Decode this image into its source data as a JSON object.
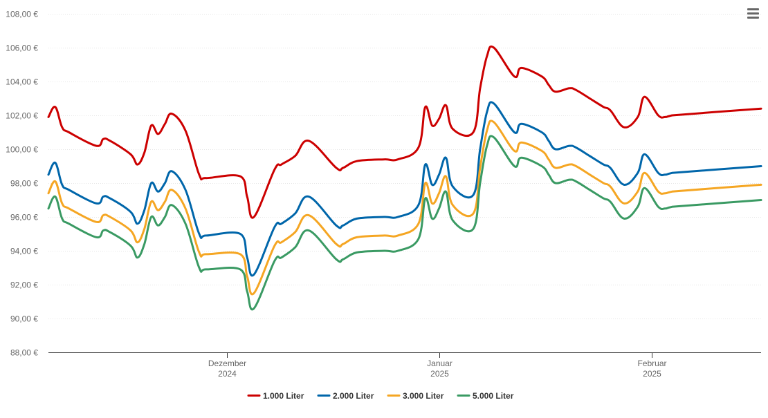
{
  "menu": {
    "icon": "hamburger-menu-icon"
  },
  "chart_data": {
    "type": "line",
    "title": "",
    "xlabel": "",
    "ylabel": "",
    "ylim": [
      88,
      108
    ],
    "yticks": [
      "88,00 €",
      "90,00 €",
      "92,00 €",
      "94,00 €",
      "96,00 €",
      "98,00 €",
      "100,00 €",
      "102,00 €",
      "104,00 €",
      "106,00 €",
      "108,00 €"
    ],
    "ytick_values": [
      88,
      90,
      92,
      94,
      96,
      98,
      100,
      102,
      104,
      106,
      108
    ],
    "xlim": [
      "2024-11-05",
      "2025-02-17"
    ],
    "xticks": [
      {
        "date": "2024-12-01",
        "line1": "Dezember",
        "line2": "2024"
      },
      {
        "date": "2025-01-01",
        "line1": "Januar",
        "line2": "2025"
      },
      {
        "date": "2025-02-01",
        "line1": "Februar",
        "line2": "2025"
      }
    ],
    "grid": true,
    "legend_position": "bottom-center",
    "x": [
      "2024-11-05",
      "2024-11-06",
      "2024-11-07",
      "2024-11-08",
      "2024-11-12",
      "2024-11-13",
      "2024-11-14",
      "2024-11-17",
      "2024-11-18",
      "2024-11-19",
      "2024-11-20",
      "2024-11-21",
      "2024-11-22",
      "2024-11-23",
      "2024-11-25",
      "2024-11-27",
      "2024-11-28",
      "2024-12-03",
      "2024-12-04",
      "2024-12-05",
      "2024-12-08",
      "2024-12-09",
      "2024-12-11",
      "2024-12-13",
      "2024-12-17",
      "2024-12-18",
      "2024-12-20",
      "2024-12-24",
      "2024-12-26",
      "2024-12-29",
      "2024-12-30",
      "2024-12-31",
      "2025-01-01",
      "2025-01-02",
      "2025-01-03",
      "2025-01-06",
      "2025-01-07",
      "2025-01-08",
      "2025-01-09",
      "2025-01-12",
      "2025-01-13",
      "2025-01-16",
      "2025-01-17",
      "2025-01-18",
      "2025-01-20",
      "2025-01-21",
      "2025-01-23",
      "2025-01-25",
      "2025-01-26",
      "2025-01-28",
      "2025-01-30",
      "2025-01-31",
      "2025-02-02",
      "2025-02-03",
      "2025-02-04",
      "2025-02-17"
    ],
    "series": [
      {
        "name": "1.000 Liter",
        "color": "#cc0000",
        "values": [
          101.9,
          102.5,
          101.3,
          101.0,
          100.2,
          100.6,
          100.5,
          99.7,
          99.1,
          99.8,
          101.4,
          100.9,
          101.5,
          102.1,
          101.1,
          98.5,
          98.3,
          98.4,
          97.2,
          96.0,
          98.8,
          99.1,
          99.6,
          100.5,
          98.9,
          98.9,
          99.3,
          99.4,
          99.4,
          100.1,
          102.5,
          101.4,
          101.8,
          102.6,
          101.2,
          101.0,
          103.6,
          105.5,
          106.0,
          104.3,
          104.8,
          104.3,
          103.8,
          103.4,
          103.6,
          103.5,
          103.0,
          102.5,
          102.3,
          101.3,
          101.9,
          103.1,
          102.0,
          101.9,
          102.0,
          102.4
        ]
      },
      {
        "name": "2.000 Liter",
        "color": "#0066aa",
        "values": [
          98.5,
          99.2,
          97.9,
          97.6,
          96.8,
          97.2,
          97.1,
          96.3,
          95.6,
          96.4,
          98.0,
          97.5,
          98.0,
          98.7,
          97.6,
          95.0,
          94.9,
          95.0,
          93.6,
          92.6,
          95.4,
          95.6,
          96.2,
          97.2,
          95.5,
          95.5,
          95.9,
          96.0,
          96.0,
          96.7,
          99.1,
          97.9,
          98.5,
          99.5,
          97.8,
          97.3,
          100.0,
          102.2,
          102.7,
          101.0,
          101.5,
          101.0,
          100.5,
          100.0,
          100.2,
          100.1,
          99.6,
          99.1,
          98.9,
          97.9,
          98.6,
          99.7,
          98.6,
          98.5,
          98.6,
          99.0
        ]
      },
      {
        "name": "3.000 Liter",
        "color": "#f5a623",
        "values": [
          97.4,
          98.1,
          96.8,
          96.5,
          95.7,
          96.1,
          96.0,
          95.2,
          94.5,
          95.3,
          96.9,
          96.4,
          96.9,
          97.6,
          96.5,
          93.9,
          93.8,
          93.8,
          92.5,
          91.5,
          94.3,
          94.5,
          95.1,
          96.1,
          94.4,
          94.4,
          94.8,
          94.9,
          94.9,
          95.6,
          98.0,
          96.8,
          97.4,
          98.4,
          96.7,
          96.2,
          98.9,
          101.1,
          101.6,
          99.9,
          100.4,
          99.9,
          99.4,
          98.9,
          99.1,
          99.0,
          98.5,
          98.0,
          97.8,
          96.8,
          97.5,
          98.6,
          97.5,
          97.4,
          97.5,
          97.9
        ]
      },
      {
        "name": "5.000 Liter",
        "color": "#3a9a63",
        "values": [
          96.5,
          97.2,
          95.9,
          95.6,
          94.8,
          95.2,
          95.1,
          94.3,
          93.6,
          94.4,
          96.0,
          95.5,
          96.0,
          96.7,
          95.6,
          93.0,
          92.9,
          92.9,
          91.6,
          90.6,
          93.4,
          93.6,
          94.2,
          95.2,
          93.5,
          93.5,
          93.9,
          94.0,
          94.0,
          94.7,
          97.1,
          95.9,
          96.5,
          97.5,
          95.8,
          95.3,
          98.0,
          100.2,
          100.7,
          99.0,
          99.5,
          99.0,
          98.5,
          98.0,
          98.2,
          98.1,
          97.6,
          97.1,
          96.9,
          95.9,
          96.6,
          97.7,
          96.6,
          96.5,
          96.6,
          97.0
        ]
      }
    ]
  }
}
